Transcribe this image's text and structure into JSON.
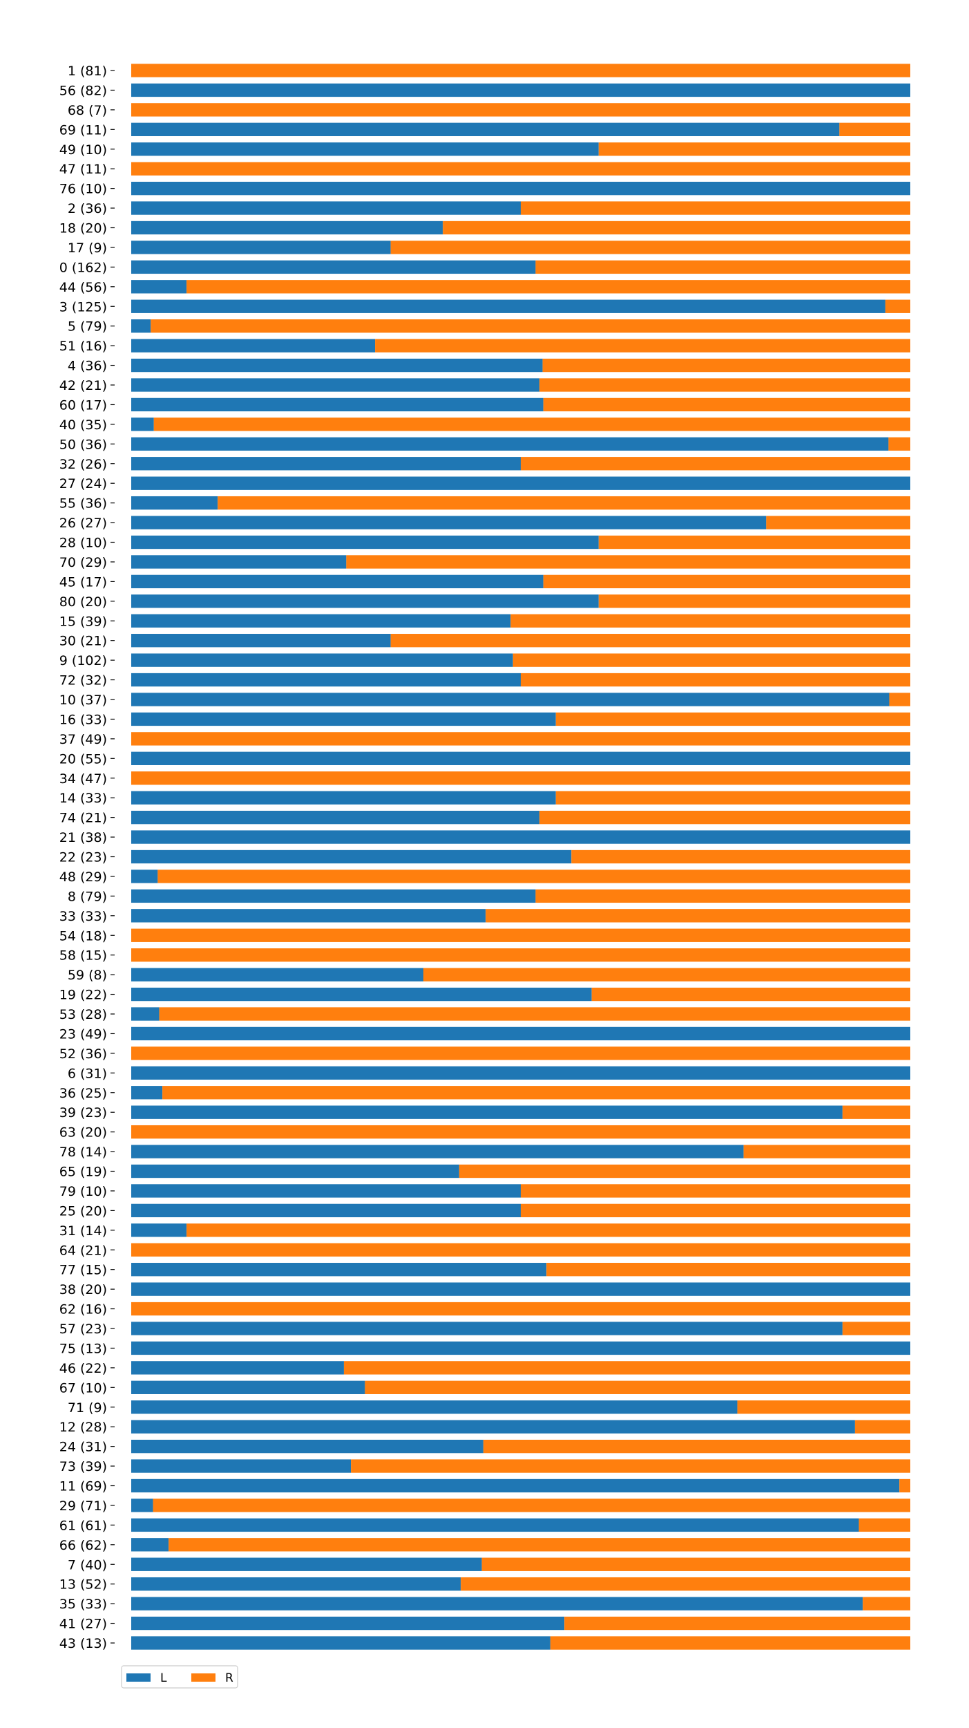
{
  "chart_data": {
    "type": "bar",
    "orientation": "horizontal",
    "stacked": true,
    "normalized": true,
    "title": "",
    "xlabel": "",
    "ylabel": "",
    "xlim": [
      0,
      1
    ],
    "grid": false,
    "legend_position": "bottom-left",
    "categories": [
      "1 (81)",
      "56 (82)",
      "68 (7)",
      "69 (11)",
      "49 (10)",
      "47 (11)",
      "76 (10)",
      "2 (36)",
      "18 (20)",
      "17 (9)",
      "0 (162)",
      "44 (56)",
      "3 (125)",
      "5 (79)",
      "51 (16)",
      "4 (36)",
      "42 (21)",
      "60 (17)",
      "40 (35)",
      "50 (36)",
      "32 (26)",
      "27 (24)",
      "55 (36)",
      "26 (27)",
      "28 (10)",
      "70 (29)",
      "45 (17)",
      "80 (20)",
      "15 (39)",
      "30 (21)",
      "9 (102)",
      "72 (32)",
      "10 (37)",
      "16 (33)",
      "37 (49)",
      "20 (55)",
      "34 (47)",
      "14 (33)",
      "74 (21)",
      "21 (38)",
      "22 (23)",
      "48 (29)",
      "8 (79)",
      "33 (33)",
      "54 (18)",
      "58 (15)",
      "59 (8)",
      "19 (22)",
      "53 (28)",
      "23 (49)",
      "52 (36)",
      "6 (31)",
      "36 (25)",
      "39 (23)",
      "63 (20)",
      "78 (14)",
      "65 (19)",
      "79 (10)",
      "25 (20)",
      "31 (14)",
      "64 (21)",
      "77 (15)",
      "38 (20)",
      "62 (16)",
      "57 (23)",
      "75 (13)",
      "46 (22)",
      "67 (10)",
      "71 (9)",
      "12 (28)",
      "24 (31)",
      "73 (39)",
      "11 (69)",
      "29 (71)",
      "61 (61)",
      "66 (62)",
      "7 (40)",
      "13 (52)",
      "35 (33)",
      "41 (27)",
      "43 (13)"
    ],
    "series": [
      {
        "name": "L",
        "color": "#1f77b4",
        "values": [
          0,
          1,
          0,
          0.909,
          0.6,
          0,
          1,
          0.5,
          0.4,
          0.333,
          0.519,
          0.071,
          0.968,
          0.025,
          0.313,
          0.528,
          0.524,
          0.529,
          0.029,
          0.972,
          0.5,
          1,
          0.111,
          0.815,
          0.6,
          0.276,
          0.529,
          0.6,
          0.487,
          0.333,
          0.49,
          0.5,
          0.973,
          0.545,
          0,
          1,
          0,
          0.545,
          0.524,
          1,
          0.565,
          0.034,
          0.519,
          0.455,
          0,
          0,
          0.375,
          0.591,
          0.036,
          1,
          0,
          1,
          0.04,
          0.913,
          0,
          0.786,
          0.421,
          0.5,
          0.5,
          0.071,
          0,
          0.533,
          1,
          0,
          0.913,
          1,
          0.273,
          0.3,
          0.778,
          0.929,
          0.452,
          0.282,
          0.986,
          0.028,
          0.934,
          0.048,
          0.45,
          0.423,
          0.939,
          0.556,
          0.538
        ]
      },
      {
        "name": "R",
        "color": "#ff7f0e",
        "values": [
          1,
          0,
          1,
          0.091,
          0.4,
          1,
          0,
          0.5,
          0.6,
          0.667,
          0.481,
          0.929,
          0.032,
          0.975,
          0.687,
          0.472,
          0.476,
          0.471,
          0.971,
          0.028,
          0.5,
          0,
          0.889,
          0.185,
          0.4,
          0.724,
          0.471,
          0.4,
          0.513,
          0.667,
          0.51,
          0.5,
          0.027,
          0.455,
          1,
          0,
          1,
          0.455,
          0.476,
          0,
          0.435,
          0.966,
          0.481,
          0.545,
          1,
          1,
          0.625,
          0.409,
          0.964,
          0,
          1,
          0,
          0.96,
          0.087,
          1,
          0.214,
          0.579,
          0.5,
          0.5,
          0.929,
          1,
          0.467,
          0,
          1,
          0.087,
          0,
          0.727,
          0.7,
          0.222,
          0.071,
          0.548,
          0.718,
          0.014,
          0.972,
          0.066,
          0.952,
          0.55,
          0.577,
          0.061,
          0.444,
          0.462
        ]
      }
    ]
  }
}
